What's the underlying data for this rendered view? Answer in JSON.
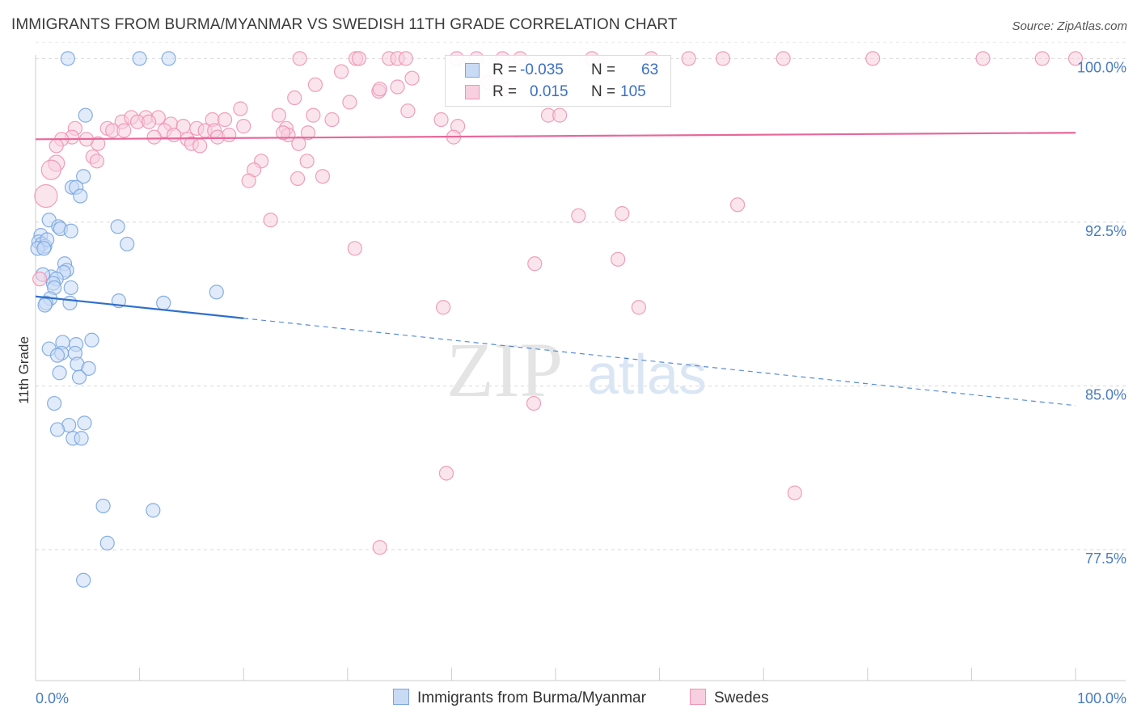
{
  "title": "IMMIGRANTS FROM BURMA/MYANMAR VS SWEDISH 11TH GRADE CORRELATION CHART",
  "source": "Source: ZipAtlas.com",
  "watermark": {
    "zip": "ZIP",
    "atlas": "atlas"
  },
  "colors": {
    "blue": "#7aa6e0",
    "blue_fill": "#c9daf5",
    "blue_line": "#2e6fcc",
    "pink": "#ee94b3",
    "pink_fill": "#f8cfde",
    "pink_line": "#e8679a",
    "tick_label": "#4a7cc0",
    "grid": "#d9d9d9"
  },
  "legend": {
    "r_label": "R =",
    "n_label": "N =",
    "series1": {
      "r": "-0.035",
      "n": "63"
    },
    "series2": {
      "r": "0.015",
      "n": "105"
    }
  },
  "bottom_legend": {
    "series1": "Immigrants from Burma/Myanmar",
    "series2": "Swedes"
  },
  "chart_data": {
    "type": "scatter",
    "title": "IMMIGRANTS FROM BURMA/MYANMAR VS SWEDISH 11TH GRADE CORRELATION CHART",
    "xlabel": "",
    "ylabel": "11th Grade",
    "xlim": [
      0,
      100
    ],
    "ylim": [
      71.5,
      101.2
    ],
    "x_tick_labels": {
      "min": "0.0%",
      "max": "100.0%"
    },
    "y_ticks": [
      100.0,
      92.5,
      85.0,
      77.5
    ],
    "y_tick_labels": [
      "100.0%",
      "92.5%",
      "85.0%",
      "77.5%"
    ],
    "grid": true,
    "series": [
      {
        "name": "Immigrants from Burma/Myanmar",
        "r": -0.035,
        "n": 63,
        "trend": {
          "x0": 0.0,
          "y0": 89.1,
          "x1": 100.0,
          "y1": 84.1,
          "solid_until_x": 20.0
        },
        "points": [
          {
            "x": 3.1,
            "y": 100.0
          },
          {
            "x": 10.0,
            "y": 100.0
          },
          {
            "x": 12.8,
            "y": 100.0
          },
          {
            "x": 4.8,
            "y": 97.4
          },
          {
            "x": 4.6,
            "y": 94.6
          },
          {
            "x": 3.5,
            "y": 94.1
          },
          {
            "x": 3.9,
            "y": 94.1
          },
          {
            "x": 4.3,
            "y": 93.7
          },
          {
            "x": 1.3,
            "y": 92.6
          },
          {
            "x": 2.2,
            "y": 92.3
          },
          {
            "x": 2.4,
            "y": 92.2
          },
          {
            "x": 3.4,
            "y": 92.1
          },
          {
            "x": 7.9,
            "y": 92.3
          },
          {
            "x": 0.5,
            "y": 91.9
          },
          {
            "x": 0.3,
            "y": 91.6
          },
          {
            "x": 0.6,
            "y": 91.5
          },
          {
            "x": 0.9,
            "y": 91.4
          },
          {
            "x": 1.1,
            "y": 91.7
          },
          {
            "x": 0.2,
            "y": 91.3
          },
          {
            "x": 0.8,
            "y": 91.3
          },
          {
            "x": 8.8,
            "y": 91.5
          },
          {
            "x": 2.8,
            "y": 90.6
          },
          {
            "x": 3.0,
            "y": 90.3
          },
          {
            "x": 2.7,
            "y": 90.2
          },
          {
            "x": 1.5,
            "y": 90.0
          },
          {
            "x": 0.7,
            "y": 90.1
          },
          {
            "x": 2.0,
            "y": 89.9
          },
          {
            "x": 1.7,
            "y": 89.7
          },
          {
            "x": 1.8,
            "y": 89.5
          },
          {
            "x": 3.4,
            "y": 89.5
          },
          {
            "x": 1.4,
            "y": 89.0
          },
          {
            "x": 1.0,
            "y": 88.8
          },
          {
            "x": 0.9,
            "y": 88.7
          },
          {
            "x": 3.3,
            "y": 88.8
          },
          {
            "x": 8.0,
            "y": 88.9
          },
          {
            "x": 12.3,
            "y": 88.8
          },
          {
            "x": 17.4,
            "y": 89.3
          },
          {
            "x": 5.4,
            "y": 87.1
          },
          {
            "x": 2.6,
            "y": 87.0
          },
          {
            "x": 3.9,
            "y": 86.9
          },
          {
            "x": 1.3,
            "y": 86.7
          },
          {
            "x": 2.5,
            "y": 86.5
          },
          {
            "x": 2.1,
            "y": 86.4
          },
          {
            "x": 3.8,
            "y": 86.5
          },
          {
            "x": 4.0,
            "y": 86.0
          },
          {
            "x": 5.1,
            "y": 85.8
          },
          {
            "x": 2.3,
            "y": 85.6
          },
          {
            "x": 4.2,
            "y": 85.4
          },
          {
            "x": 1.8,
            "y": 84.2
          },
          {
            "x": 4.7,
            "y": 83.3
          },
          {
            "x": 3.2,
            "y": 83.2
          },
          {
            "x": 2.1,
            "y": 83.0
          },
          {
            "x": 3.6,
            "y": 82.6
          },
          {
            "x": 4.4,
            "y": 82.6
          },
          {
            "x": 6.5,
            "y": 79.5
          },
          {
            "x": 11.3,
            "y": 79.3
          },
          {
            "x": 6.9,
            "y": 77.8
          },
          {
            "x": 4.6,
            "y": 76.1
          }
        ]
      },
      {
        "name": "Swedes",
        "r": 0.015,
        "n": 105,
        "trend": {
          "x0": 0.0,
          "y0": 96.3,
          "x1": 100.0,
          "y1": 96.6
        },
        "points": [
          {
            "x": 25.4,
            "y": 100.0
          },
          {
            "x": 30.8,
            "y": 100.0
          },
          {
            "x": 31.1,
            "y": 100.0
          },
          {
            "x": 34.0,
            "y": 100.0
          },
          {
            "x": 34.8,
            "y": 100.0
          },
          {
            "x": 35.6,
            "y": 100.0
          },
          {
            "x": 40.5,
            "y": 100.0
          },
          {
            "x": 42.4,
            "y": 100.0
          },
          {
            "x": 44.9,
            "y": 100.0
          },
          {
            "x": 46.6,
            "y": 100.0
          },
          {
            "x": 53.5,
            "y": 100.0
          },
          {
            "x": 59.2,
            "y": 100.0
          },
          {
            "x": 62.8,
            "y": 100.0
          },
          {
            "x": 66.1,
            "y": 100.0
          },
          {
            "x": 71.9,
            "y": 100.0
          },
          {
            "x": 80.5,
            "y": 100.0
          },
          {
            "x": 91.1,
            "y": 100.0
          },
          {
            "x": 96.8,
            "y": 100.0
          },
          {
            "x": 100.0,
            "y": 100.0
          },
          {
            "x": 26.9,
            "y": 98.8
          },
          {
            "x": 29.4,
            "y": 99.4
          },
          {
            "x": 34.8,
            "y": 98.7
          },
          {
            "x": 36.2,
            "y": 99.1
          },
          {
            "x": 43.5,
            "y": 98.9
          },
          {
            "x": 45.2,
            "y": 98.6
          },
          {
            "x": 24.9,
            "y": 98.2
          },
          {
            "x": 30.2,
            "y": 98.0
          },
          {
            "x": 33.0,
            "y": 98.5
          },
          {
            "x": 26.7,
            "y": 97.4
          },
          {
            "x": 28.5,
            "y": 97.2
          },
          {
            "x": 33.1,
            "y": 98.6
          },
          {
            "x": 35.8,
            "y": 97.6
          },
          {
            "x": 39.0,
            "y": 97.2
          },
          {
            "x": 40.6,
            "y": 96.9
          },
          {
            "x": 49.3,
            "y": 97.4
          },
          {
            "x": 50.4,
            "y": 97.4
          },
          {
            "x": 40.2,
            "y": 96.4
          },
          {
            "x": 17.0,
            "y": 97.2
          },
          {
            "x": 18.2,
            "y": 97.2
          },
          {
            "x": 19.7,
            "y": 97.7
          },
          {
            "x": 20.0,
            "y": 96.9
          },
          {
            "x": 23.4,
            "y": 97.4
          },
          {
            "x": 24.1,
            "y": 96.8
          },
          {
            "x": 24.3,
            "y": 96.5
          },
          {
            "x": 26.2,
            "y": 96.6
          },
          {
            "x": 25.3,
            "y": 96.1
          },
          {
            "x": 13.0,
            "y": 97.0
          },
          {
            "x": 14.2,
            "y": 96.9
          },
          {
            "x": 15.5,
            "y": 96.8
          },
          {
            "x": 16.3,
            "y": 96.7
          },
          {
            "x": 10.6,
            "y": 97.3
          },
          {
            "x": 11.8,
            "y": 97.3
          },
          {
            "x": 12.4,
            "y": 96.7
          },
          {
            "x": 13.3,
            "y": 96.5
          },
          {
            "x": 8.3,
            "y": 97.1
          },
          {
            "x": 9.2,
            "y": 97.3
          },
          {
            "x": 9.8,
            "y": 97.1
          },
          {
            "x": 10.9,
            "y": 97.1
          },
          {
            "x": 6.9,
            "y": 96.8
          },
          {
            "x": 7.4,
            "y": 96.7
          },
          {
            "x": 8.5,
            "y": 96.7
          },
          {
            "x": 6.0,
            "y": 96.1
          },
          {
            "x": 4.9,
            "y": 96.3
          },
          {
            "x": 11.4,
            "y": 96.4
          },
          {
            "x": 14.6,
            "y": 96.3
          },
          {
            "x": 15.0,
            "y": 96.1
          },
          {
            "x": 15.8,
            "y": 96.0
          },
          {
            "x": 17.2,
            "y": 96.7
          },
          {
            "x": 17.5,
            "y": 96.4
          },
          {
            "x": 18.6,
            "y": 96.5
          },
          {
            "x": 3.8,
            "y": 96.8
          },
          {
            "x": 3.5,
            "y": 96.4
          },
          {
            "x": 2.5,
            "y": 96.3
          },
          {
            "x": 2.0,
            "y": 96.0
          },
          {
            "x": 5.5,
            "y": 95.5
          },
          {
            "x": 5.9,
            "y": 95.3
          },
          {
            "x": 23.8,
            "y": 96.6
          },
          {
            "x": 2.0,
            "y": 95.2
          },
          {
            "x": 21.7,
            "y": 95.3
          },
          {
            "x": 21.0,
            "y": 94.9
          },
          {
            "x": 20.5,
            "y": 94.4
          },
          {
            "x": 26.1,
            "y": 95.3
          },
          {
            "x": 27.6,
            "y": 94.6
          },
          {
            "x": 25.2,
            "y": 94.5
          },
          {
            "x": 1.5,
            "y": 94.9
          },
          {
            "x": 1.0,
            "y": 93.7
          },
          {
            "x": 67.5,
            "y": 93.3
          },
          {
            "x": 56.4,
            "y": 92.9
          },
          {
            "x": 52.2,
            "y": 92.8
          },
          {
            "x": 22.6,
            "y": 92.6
          },
          {
            "x": 30.7,
            "y": 91.3
          },
          {
            "x": 48.0,
            "y": 90.6
          },
          {
            "x": 56.0,
            "y": 90.8
          },
          {
            "x": 58.0,
            "y": 88.6
          },
          {
            "x": 39.2,
            "y": 88.6
          },
          {
            "x": 47.9,
            "y": 84.2
          },
          {
            "x": 39.5,
            "y": 81.0
          },
          {
            "x": 73.0,
            "y": 80.1
          },
          {
            "x": 33.1,
            "y": 77.6
          },
          {
            "x": 0.4,
            "y": 89.9
          }
        ]
      }
    ]
  }
}
